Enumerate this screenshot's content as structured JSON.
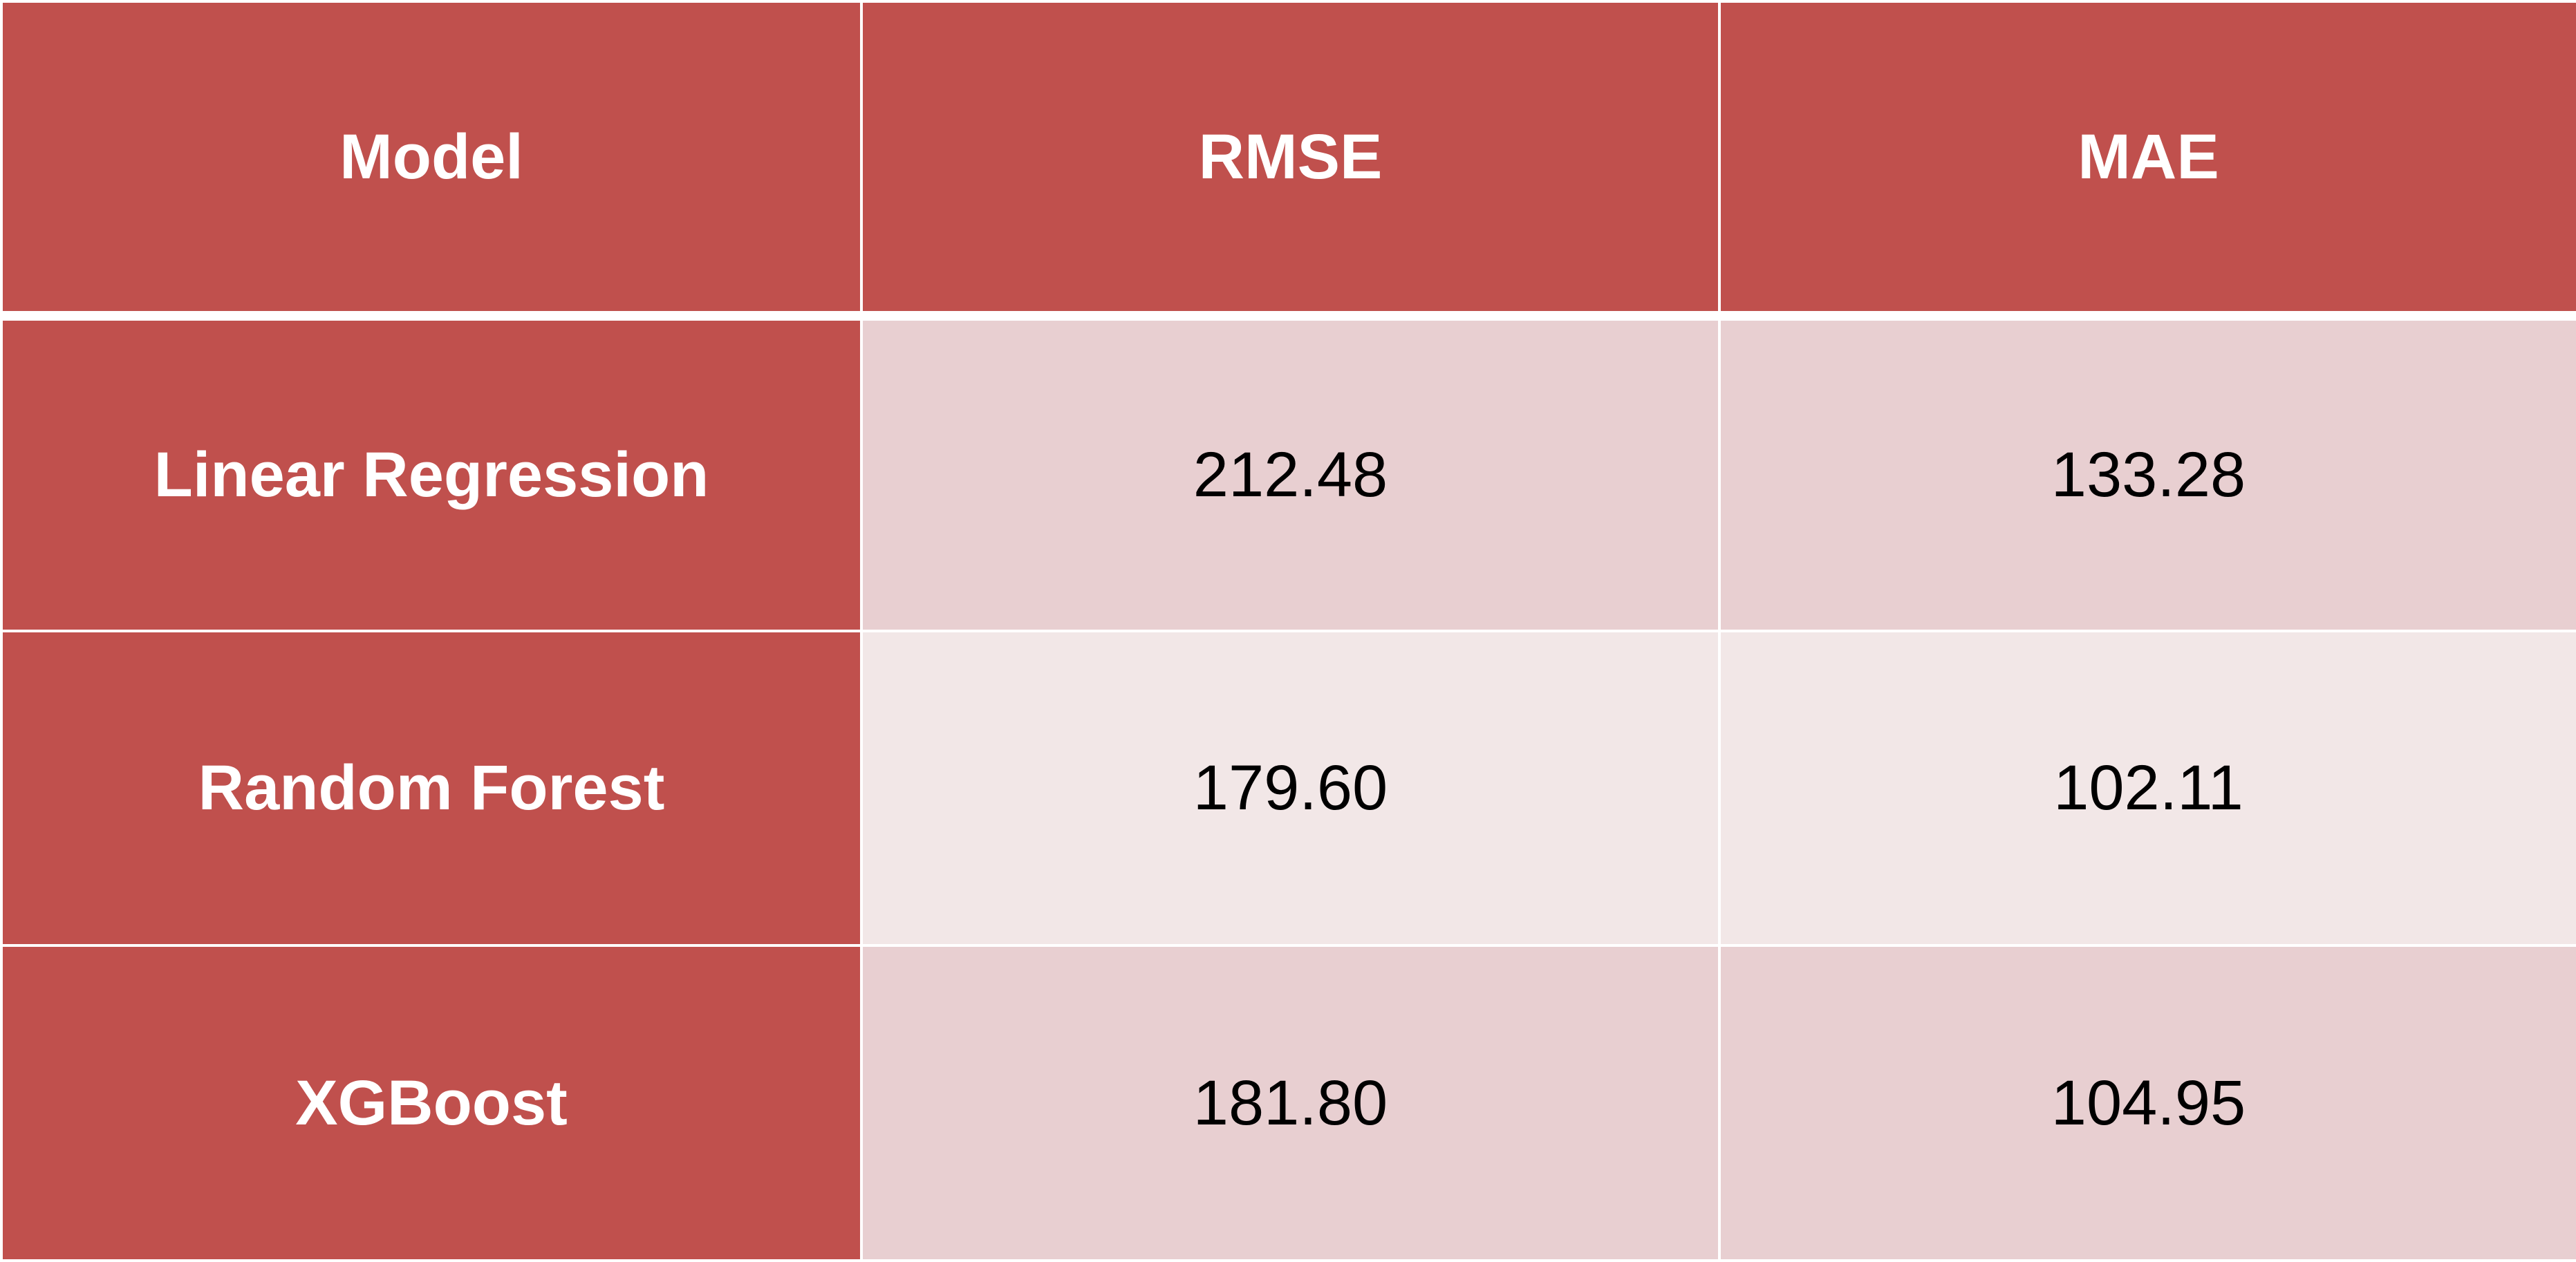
{
  "chart_data": {
    "type": "table",
    "columns": [
      "Model",
      "RMSE",
      "MAE"
    ],
    "rows": [
      {
        "model": "Linear Regression",
        "rmse": "212.48",
        "mae": "133.28"
      },
      {
        "model": "Random Forest",
        "rmse": "179.60",
        "mae": "102.11"
      },
      {
        "model": "XGBoost",
        "rmse": "181.80",
        "mae": "104.95"
      }
    ]
  },
  "colors": {
    "header_bg": "#c0504d",
    "header_text": "#ffffff",
    "row_odd_bg": "#e8cfd1",
    "row_even_bg": "#f2e7e7"
  }
}
